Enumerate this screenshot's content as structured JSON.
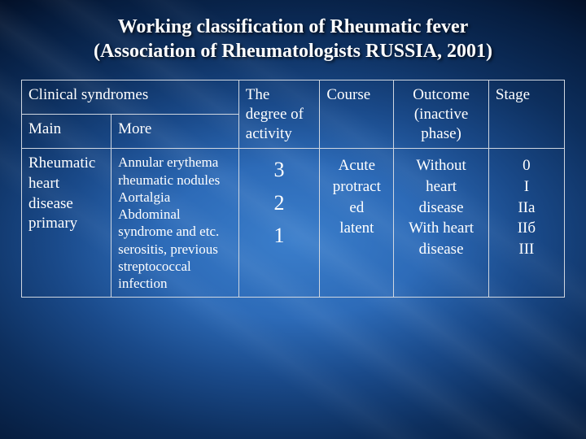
{
  "title": {
    "line1": "Working classification of Rheumatic fever",
    "line2": "(Association of Rheumatologists RUSSIA, 2001)"
  },
  "table": {
    "header": {
      "clinical": "Clinical syndromes",
      "main": "Main",
      "more": "More",
      "degree": "The degree of activity",
      "course": "Course",
      "outcome": "Outcome (inactive phase)",
      "stage": "Stage"
    },
    "body": {
      "main": "Rheumatic heart disease primary",
      "more": "Annular erythema rheumatic nodules Aortalgia Abdominal syndrome and etc. serositis, previous streptococcal infection",
      "degree": "3\n2\n1",
      "course": "Acute\nprotract\ned\nlatent",
      "outcome": "Without\nheart\ndisease\nWith heart\ndisease",
      "stage": "0\nI\nIIа\nIIб\nIII"
    },
    "colors": {
      "border": "#cfd6e0",
      "text": "#ffffff"
    }
  }
}
